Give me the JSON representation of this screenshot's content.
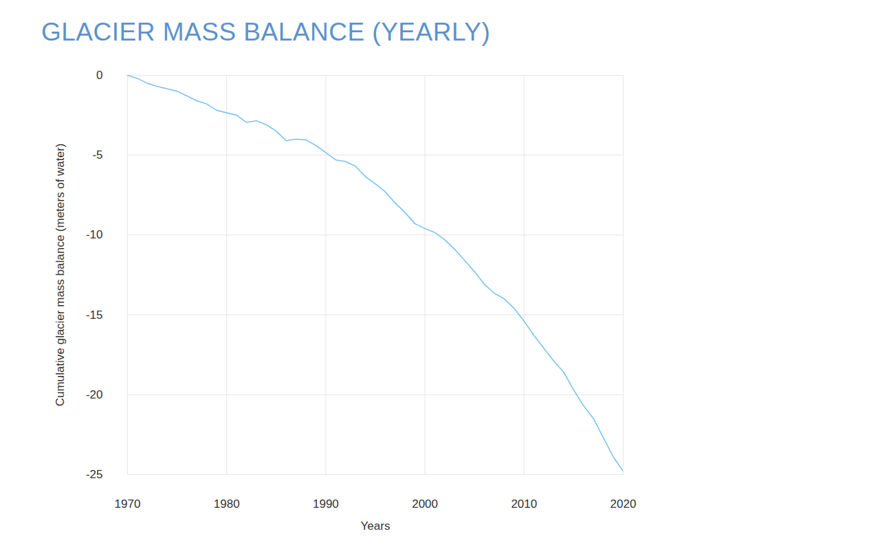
{
  "chart_data": {
    "type": "line",
    "title": "GLACIER MASS BALANCE (YEARLY)",
    "x_label": "Years",
    "y_label": "Cumulative glacier mass balance (meters of water)",
    "x": [
      1970,
      1971,
      1972,
      1973,
      1974,
      1975,
      1976,
      1977,
      1978,
      1979,
      1980,
      1981,
      1982,
      1983,
      1984,
      1985,
      1986,
      1987,
      1988,
      1989,
      1990,
      1991,
      1992,
      1993,
      1994,
      1995,
      1996,
      1997,
      1998,
      1999,
      2000,
      2001,
      2002,
      2003,
      2004,
      2005,
      2006,
      2007,
      2008,
      2009,
      2010,
      2011,
      2012,
      2013,
      2014,
      2015,
      2016,
      2017,
      2018,
      2019,
      2020
    ],
    "values": [
      0,
      -0.2,
      -0.5,
      -0.7,
      -0.85,
      -1.0,
      -1.3,
      -1.6,
      -1.8,
      -2.2,
      -2.35,
      -2.5,
      -2.95,
      -2.85,
      -3.1,
      -3.5,
      -4.1,
      -4.0,
      -4.05,
      -4.4,
      -4.85,
      -5.3,
      -5.4,
      -5.7,
      -6.35,
      -6.8,
      -7.3,
      -8.0,
      -8.6,
      -9.3,
      -9.6,
      -9.85,
      -10.3,
      -10.9,
      -11.6,
      -12.3,
      -13.1,
      -13.65,
      -14.0,
      -14.6,
      -15.4,
      -16.3,
      -17.1,
      -17.9,
      -18.6,
      -19.7,
      -20.7,
      -21.5,
      -22.7,
      -23.9,
      -24.8
    ],
    "color": "#7cc3ee",
    "xlim": [
      1970,
      2020
    ],
    "xticks": [
      1970,
      1980,
      1990,
      2000,
      2010,
      2020
    ],
    "ylim": [
      -25,
      0
    ],
    "yticks": [
      0,
      -5,
      -10,
      -15,
      -20,
      -25
    ],
    "grid": true
  }
}
